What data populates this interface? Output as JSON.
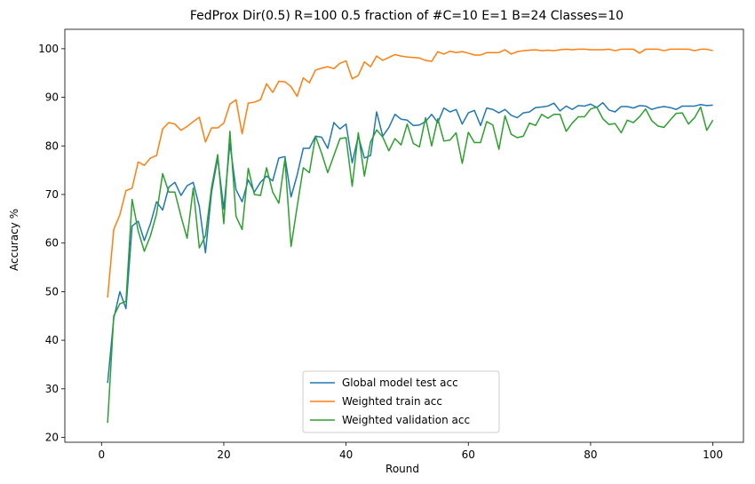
{
  "chart_data": {
    "type": "line",
    "title": "FedProx Dir(0.5) R=100 0.5 fraction of #C=10 E=1 B=24  Classes=10",
    "xlabel": "Round",
    "ylabel": "Accuracy %",
    "xlim": [
      -6,
      105
    ],
    "ylim": [
      19,
      104
    ],
    "xticks": [
      0,
      20,
      40,
      60,
      80,
      100
    ],
    "yticks": [
      20,
      30,
      40,
      50,
      60,
      70,
      80,
      90,
      100
    ],
    "grid": false,
    "legend": "bottom-center",
    "x": [
      1,
      2,
      3,
      4,
      5,
      6,
      7,
      8,
      9,
      10,
      11,
      12,
      13,
      14,
      15,
      16,
      17,
      18,
      19,
      20,
      21,
      22,
      23,
      24,
      25,
      26,
      27,
      28,
      29,
      30,
      31,
      32,
      33,
      34,
      35,
      36,
      37,
      38,
      39,
      40,
      41,
      42,
      43,
      44,
      45,
      46,
      47,
      48,
      49,
      50,
      51,
      52,
      53,
      54,
      55,
      56,
      57,
      58,
      59,
      60,
      61,
      62,
      63,
      64,
      65,
      66,
      67,
      68,
      69,
      70,
      71,
      72,
      73,
      74,
      75,
      76,
      77,
      78,
      79,
      80,
      81,
      82,
      83,
      84,
      85,
      86,
      87,
      88,
      89,
      90,
      91,
      92,
      93,
      94,
      95,
      96,
      97,
      98,
      99,
      100
    ],
    "series": [
      {
        "name": "Global model test acc",
        "color": "#1f77b4",
        "values": [
          31.2,
          44.5,
          50.0,
          46.5,
          63.5,
          64.5,
          60.5,
          64.0,
          68.5,
          66.8,
          71.5,
          72.5,
          69.8,
          71.8,
          72.5,
          67.5,
          58.0,
          70.5,
          77.5,
          67.0,
          80.5,
          71.0,
          68.5,
          73.0,
          70.5,
          72.5,
          73.8,
          72.8,
          77.5,
          77.8,
          69.5,
          74.0,
          79.5,
          79.5,
          82.0,
          81.8,
          79.5,
          84.8,
          83.5,
          84.5,
          76.5,
          82.0,
          77.5,
          78.0,
          87.0,
          82.0,
          83.8,
          86.5,
          85.5,
          85.3,
          84.2,
          84.3,
          85.0,
          86.5,
          84.8,
          87.8,
          87.0,
          87.5,
          84.5,
          86.8,
          87.3,
          84.2,
          87.8,
          87.5,
          86.8,
          87.5,
          86.3,
          85.8,
          86.8,
          87.0,
          87.9,
          88.0,
          88.2,
          88.8,
          87.2,
          88.2,
          87.5,
          88.3,
          88.2,
          88.6,
          87.9,
          88.9,
          87.4,
          87.0,
          88.1,
          88.1,
          87.8,
          88.3,
          88.2,
          87.5,
          87.9,
          88.1,
          87.9,
          87.5,
          88.2,
          88.2,
          88.2,
          88.5,
          88.3,
          88.4
        ]
      },
      {
        "name": "Weighted train acc",
        "color": "#ff7f0e",
        "values": [
          48.8,
          62.8,
          65.8,
          70.8,
          71.3,
          76.7,
          76.0,
          77.5,
          78.0,
          83.5,
          84.8,
          84.5,
          83.2,
          84.0,
          85.0,
          85.9,
          80.8,
          83.7,
          83.7,
          84.7,
          88.6,
          89.5,
          82.5,
          88.8,
          89.0,
          89.5,
          92.8,
          91.0,
          93.3,
          93.2,
          92.2,
          90.2,
          94.0,
          93.0,
          95.6,
          96.0,
          96.3,
          95.9,
          97.0,
          97.5,
          93.8,
          94.5,
          97.3,
          96.3,
          98.5,
          97.6,
          98.2,
          98.8,
          98.5,
          98.3,
          98.2,
          98.1,
          97.6,
          97.4,
          99.4,
          98.9,
          99.5,
          99.2,
          99.4,
          99.1,
          98.7,
          98.7,
          99.2,
          99.2,
          99.2,
          99.8,
          98.9,
          99.4,
          99.6,
          99.7,
          99.8,
          99.6,
          99.7,
          99.6,
          99.8,
          99.9,
          99.8,
          99.9,
          99.9,
          99.8,
          99.8,
          99.8,
          99.9,
          99.6,
          99.9,
          99.9,
          99.9,
          99.1,
          99.9,
          99.9,
          99.9,
          99.6,
          99.9,
          99.9,
          99.9,
          99.9,
          99.6,
          99.9,
          99.9,
          99.6
        ]
      },
      {
        "name": "Weighted validation acc",
        "color": "#2ca02c",
        "values": [
          23.0,
          45.0,
          47.5,
          48.0,
          69.0,
          62.5,
          58.3,
          61.5,
          66.0,
          74.3,
          70.5,
          70.5,
          65.5,
          61.0,
          71.3,
          59.0,
          61.5,
          71.5,
          78.2,
          64.0,
          83.0,
          65.5,
          62.8,
          75.4,
          70.0,
          69.8,
          75.5,
          70.5,
          68.2,
          77.3,
          59.3,
          67.5,
          75.5,
          74.5,
          82.0,
          78.5,
          74.5,
          78.0,
          81.5,
          81.7,
          71.7,
          82.7,
          73.8,
          80.8,
          83.3,
          81.8,
          79.0,
          81.5,
          80.2,
          84.5,
          80.5,
          79.8,
          85.8,
          80.0,
          85.6,
          81.0,
          81.2,
          82.7,
          76.4,
          82.8,
          80.7,
          80.7,
          85.0,
          84.3,
          79.3,
          86.2,
          82.4,
          81.7,
          82.0,
          84.7,
          84.2,
          86.5,
          85.7,
          86.5,
          86.5,
          83.0,
          84.7,
          86.0,
          86.0,
          87.6,
          88.0,
          85.6,
          84.4,
          84.6,
          82.7,
          85.3,
          84.8,
          86.0,
          87.6,
          85.2,
          84.1,
          83.8,
          85.3,
          86.7,
          86.8,
          84.5,
          85.8,
          88.0,
          83.2,
          85.3
        ]
      }
    ]
  }
}
